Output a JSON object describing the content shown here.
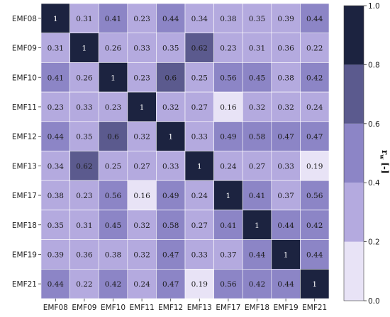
{
  "chart_data": {
    "type": "heatmap",
    "title": "",
    "row_labels": [
      "EMF08",
      "EMF09",
      "EMF10",
      "EMF11",
      "EMF12",
      "EMF13",
      "EMF17",
      "EMF18",
      "EMF19",
      "EMF21"
    ],
    "col_labels": [
      "EMF08",
      "EMF09",
      "EMF10",
      "EMF11",
      "EMF12",
      "EMF13",
      "EMF17",
      "EMF18",
      "EMF19",
      "EMF21"
    ],
    "values": [
      [
        1,
        0.31,
        0.41,
        0.23,
        0.44,
        0.34,
        0.38,
        0.35,
        0.39,
        0.44
      ],
      [
        0.31,
        1,
        0.26,
        0.33,
        0.35,
        0.62,
        0.23,
        0.31,
        0.36,
        0.22
      ],
      [
        0.41,
        0.26,
        1,
        0.23,
        0.6,
        0.25,
        0.56,
        0.45,
        0.38,
        0.42
      ],
      [
        0.23,
        0.33,
        0.23,
        1,
        0.32,
        0.27,
        0.16,
        0.32,
        0.32,
        0.24
      ],
      [
        0.44,
        0.35,
        0.6,
        0.32,
        1,
        0.33,
        0.49,
        0.58,
        0.47,
        0.47
      ],
      [
        0.34,
        0.62,
        0.25,
        0.27,
        0.33,
        1,
        0.24,
        0.27,
        0.33,
        0.19
      ],
      [
        0.38,
        0.23,
        0.56,
        0.16,
        0.49,
        0.24,
        1,
        0.41,
        0.37,
        0.56
      ],
      [
        0.35,
        0.31,
        0.45,
        0.32,
        0.58,
        0.27,
        0.41,
        1,
        0.44,
        0.42
      ],
      [
        0.39,
        0.36,
        0.38,
        0.32,
        0.47,
        0.33,
        0.37,
        0.44,
        1,
        0.44
      ],
      [
        0.44,
        0.22,
        0.42,
        0.24,
        0.47,
        0.19,
        0.56,
        0.42,
        0.44,
        1
      ]
    ],
    "colorbar": {
      "label_main": "r",
      "label_sub": "w",
      "label_unit": "[-]",
      "ticks": [
        "0.0",
        "0.2",
        "0.4",
        "0.6",
        "0.8",
        "1.0"
      ],
      "tick_values": [
        0.0,
        0.2,
        0.4,
        0.6,
        0.8,
        1.0
      ],
      "bins": [
        0.0,
        0.2,
        0.4,
        0.6,
        0.8,
        1.0
      ],
      "colors": [
        "#e8e3f6",
        "#b4aadf",
        "#8c85c6",
        "#5b5a8e",
        "#1c2340"
      ]
    },
    "grid": false,
    "legend": "right"
  }
}
